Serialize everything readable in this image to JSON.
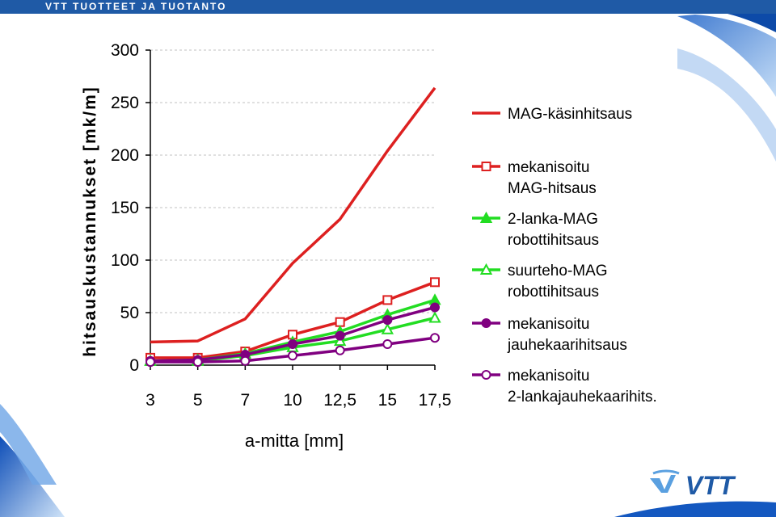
{
  "header": {
    "title": "VTT TUOTTEET JA TUOTANTO"
  },
  "logo": {
    "text": "VTT"
  },
  "colors": {
    "header": "#1f5aa6",
    "red": "#dd2020",
    "green": "#22dd22",
    "purple": "#800080",
    "grid": "#c0c0c0"
  },
  "chart_data": {
    "type": "line",
    "ylabel": "hitsauskustannukset [mk/m]",
    "xlabel": "a-mitta [mm]",
    "categories": [
      "3",
      "5",
      "7",
      "10",
      "12,5",
      "15",
      "17,5"
    ],
    "ylim": [
      0,
      300
    ],
    "yticks": [
      0,
      50,
      100,
      150,
      200,
      250,
      300
    ],
    "grid": "horizontal dashed",
    "legend_position": "right",
    "series": [
      {
        "name": "MAG-käsinhitsaus",
        "name_lines": [
          "MAG-käsinhitsaus"
        ],
        "color": "#dd2020",
        "marker": "none",
        "values": [
          22,
          23,
          44,
          97,
          139,
          204,
          264
        ]
      },
      {
        "name": "mekanisoitu MAG-hitsaus",
        "name_lines": [
          "mekanisoitu",
          "MAG-hitsaus"
        ],
        "color": "#dd2020",
        "marker": "square-open",
        "values": [
          7,
          7,
          13,
          29,
          41,
          62,
          79
        ]
      },
      {
        "name": "2-lanka-MAG robottihitsaus",
        "name_lines": [
          "2-lanka-MAG",
          "robottihitsaus"
        ],
        "color": "#22dd22",
        "marker": "triangle-filled",
        "values": [
          4,
          5,
          11,
          22,
          32,
          48,
          62
        ]
      },
      {
        "name": "suurteho-MAG robottihitsaus",
        "name_lines": [
          "suurteho-MAG",
          "robottihitsaus"
        ],
        "color": "#22dd22",
        "marker": "triangle-open",
        "values": [
          4,
          4,
          9,
          17,
          23,
          34,
          45
        ]
      },
      {
        "name": "mekanisoitu jauhekaarihitsaus",
        "name_lines": [
          "mekanisoitu",
          "jauhekaarihitsaus"
        ],
        "color": "#800080",
        "marker": "circle-filled",
        "values": [
          4,
          5,
          10,
          20,
          28,
          43,
          55
        ]
      },
      {
        "name": "mekanisoitu 2-lankajauhekaarihits.",
        "name_lines": [
          "mekanisoitu",
          "2-lankajauhekaarihits."
        ],
        "color": "#800080",
        "marker": "circle-open",
        "values": [
          3,
          3,
          4,
          9,
          14,
          20,
          26
        ]
      }
    ]
  }
}
